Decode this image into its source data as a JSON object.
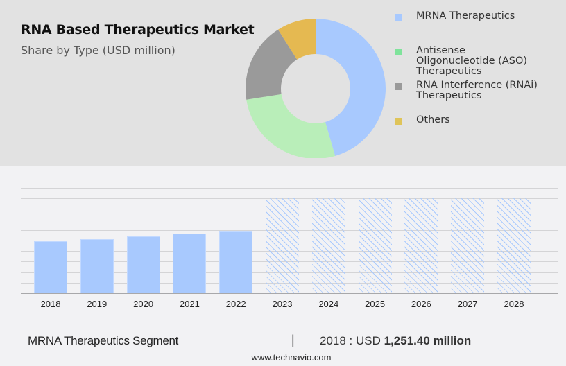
{
  "header": {
    "title": "RNA Based Therapeutics Market",
    "subtitle": "Share by Type (USD million)"
  },
  "legend": {
    "items": [
      {
        "label": "MRNA Therapeutics",
        "color": "#a8c9fe"
      },
      {
        "label": "Antisense\nOligonucleotide (ASO)\nTherapeutics",
        "color": "#7fe39b"
      },
      {
        "label": "RNA Interference (RNAi)\nTherapeutics",
        "color": "#9a9a9a"
      },
      {
        "label": "Others",
        "color": "#dfc459"
      }
    ]
  },
  "footer": {
    "segment": "MRNA Therapeutics Segment",
    "separator": "|",
    "value_prefix": "2018 : USD ",
    "value_bold": "1,251.40 million",
    "url": "www.technavio.com"
  },
  "chart_data": [
    {
      "type": "pie",
      "title": "RNA Based Therapeutics Market",
      "subtitle": "Share by Type (USD million)",
      "donut": true,
      "categories": [
        "MRNA Therapeutics",
        "Antisense Oligonucleotide (ASO) Therapeutics",
        "RNA Interference (RNAi) Therapeutics",
        "Others"
      ],
      "values": [
        45.5,
        27,
        18.5,
        9
      ],
      "colors": [
        "#a8c9fe",
        "#b9eeb9",
        "#9a9a9a",
        "#e5b951"
      ],
      "legend_position": "right"
    },
    {
      "type": "bar",
      "title": "MRNA Therapeutics Segment",
      "categories": [
        "2018",
        "2019",
        "2020",
        "2021",
        "2022",
        "2023",
        "2024",
        "2025",
        "2026",
        "2027",
        "2028"
      ],
      "values": [
        1251.4,
        1308,
        1370,
        1440,
        1510,
        null,
        null,
        null,
        null,
        null,
        null
      ],
      "forecast": [
        false,
        false,
        false,
        false,
        false,
        true,
        true,
        true,
        true,
        true,
        true
      ],
      "xlabel": "",
      "ylabel": "",
      "grid": true,
      "annotation": "2018 : USD 1,251.40 million"
    }
  ]
}
